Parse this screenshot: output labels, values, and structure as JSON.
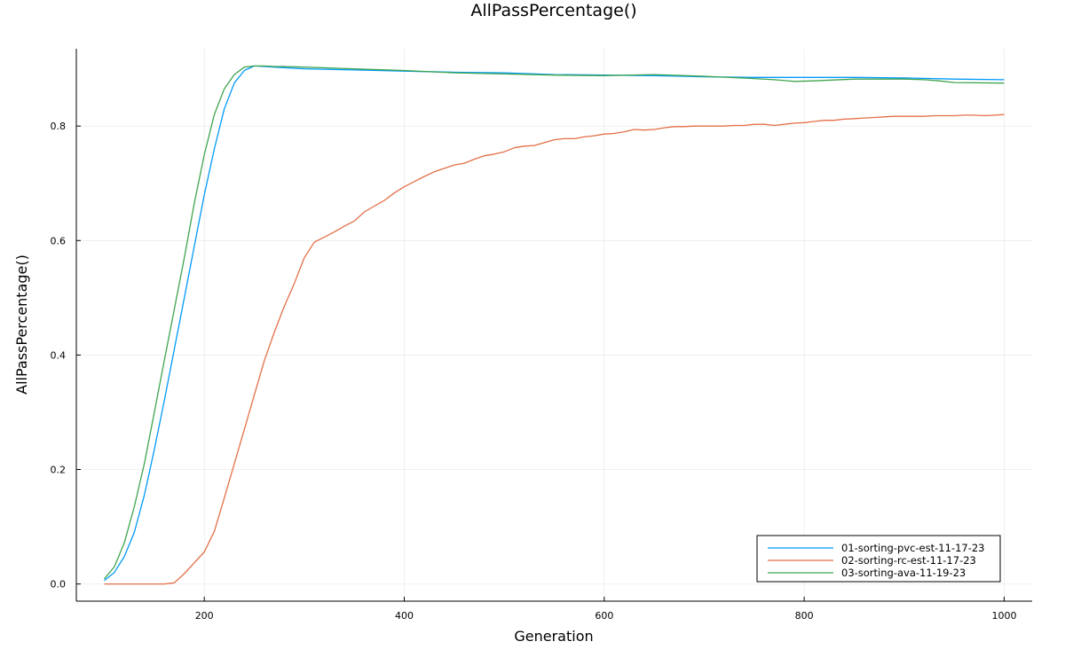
{
  "chart_data": {
    "type": "line",
    "title": "AllPassPercentage()",
    "xlabel": "Generation",
    "ylabel": "AllPassPercentage()",
    "xlim": [
      72,
      1028
    ],
    "ylim": [
      -0.03,
      0.935
    ],
    "xticks": [
      200,
      400,
      600,
      800,
      1000
    ],
    "yticks": [
      0.0,
      0.2,
      0.4,
      0.6,
      0.8
    ],
    "ytick_labels": [
      "0.0",
      "0.2",
      "0.4",
      "0.6",
      "0.8"
    ],
    "grid": true,
    "legend_position": "bottom-right",
    "series": [
      {
        "name": "01-sorting-pvc-est-11-17-23",
        "color": "#009AFA",
        "x": [
          100,
          110,
          120,
          130,
          140,
          150,
          160,
          170,
          180,
          190,
          200,
          210,
          220,
          230,
          240,
          250,
          260,
          270,
          280,
          300,
          350,
          400,
          450,
          500,
          550,
          600,
          650,
          700,
          750,
          800,
          850,
          900,
          950,
          1000
        ],
        "y": [
          0.006,
          0.02,
          0.048,
          0.09,
          0.155,
          0.235,
          0.32,
          0.41,
          0.5,
          0.59,
          0.68,
          0.76,
          0.83,
          0.875,
          0.897,
          0.905,
          0.904,
          0.903,
          0.902,
          0.9,
          0.898,
          0.896,
          0.894,
          0.893,
          0.89,
          0.889,
          0.888,
          0.886,
          0.885,
          0.885,
          0.885,
          0.884,
          0.882,
          0.881
        ]
      },
      {
        "name": "02-sorting-rc-est-11-17-23",
        "color": "#E36F47",
        "x": [
          100,
          120,
          140,
          160,
          170,
          180,
          190,
          200,
          210,
          220,
          230,
          240,
          250,
          260,
          270,
          280,
          290,
          300,
          310,
          320,
          330,
          340,
          350,
          360,
          370,
          380,
          390,
          400,
          410,
          420,
          430,
          440,
          450,
          460,
          470,
          480,
          490,
          500,
          510,
          520,
          530,
          540,
          550,
          560,
          570,
          580,
          590,
          600,
          610,
          620,
          630,
          640,
          650,
          660,
          670,
          680,
          690,
          700,
          710,
          720,
          730,
          740,
          750,
          760,
          770,
          780,
          790,
          800,
          810,
          820,
          830,
          840,
          850,
          860,
          870,
          880,
          890,
          900,
          910,
          920,
          930,
          940,
          950,
          960,
          970,
          980,
          990,
          1000
        ],
        "y": [
          0.0,
          0.0,
          0.0,
          0.0,
          0.002,
          0.018,
          0.037,
          0.056,
          0.092,
          0.15,
          0.21,
          0.27,
          0.33,
          0.39,
          0.44,
          0.485,
          0.525,
          0.57,
          0.597,
          0.606,
          0.615,
          0.625,
          0.634,
          0.65,
          0.66,
          0.67,
          0.683,
          0.694,
          0.703,
          0.712,
          0.72,
          0.726,
          0.732,
          0.735,
          0.742,
          0.748,
          0.751,
          0.755,
          0.762,
          0.765,
          0.766,
          0.771,
          0.776,
          0.778,
          0.778,
          0.781,
          0.783,
          0.786,
          0.787,
          0.79,
          0.794,
          0.793,
          0.794,
          0.797,
          0.799,
          0.799,
          0.8,
          0.8,
          0.8,
          0.8,
          0.801,
          0.801,
          0.803,
          0.803,
          0.801,
          0.803,
          0.805,
          0.806,
          0.808,
          0.81,
          0.81,
          0.812,
          0.813,
          0.814,
          0.815,
          0.816,
          0.817,
          0.817,
          0.817,
          0.817,
          0.818,
          0.818,
          0.818,
          0.819,
          0.819,
          0.818,
          0.819,
          0.82
        ]
      },
      {
        "name": "03-sorting-ava-11-19-23",
        "color": "#3EA44E",
        "x": [
          100,
          110,
          120,
          130,
          140,
          150,
          160,
          170,
          180,
          190,
          200,
          210,
          220,
          230,
          240,
          250,
          260,
          270,
          280,
          300,
          350,
          400,
          450,
          500,
          550,
          600,
          650,
          700,
          750,
          770,
          790,
          810,
          850,
          900,
          920,
          935,
          950,
          1000
        ],
        "y": [
          0.009,
          0.03,
          0.072,
          0.135,
          0.21,
          0.3,
          0.39,
          0.48,
          0.57,
          0.665,
          0.75,
          0.82,
          0.865,
          0.89,
          0.903,
          0.905,
          0.905,
          0.904,
          0.904,
          0.903,
          0.9,
          0.897,
          0.893,
          0.891,
          0.889,
          0.888,
          0.89,
          0.887,
          0.883,
          0.881,
          0.878,
          0.879,
          0.882,
          0.882,
          0.881,
          0.879,
          0.876,
          0.875
        ]
      }
    ]
  }
}
